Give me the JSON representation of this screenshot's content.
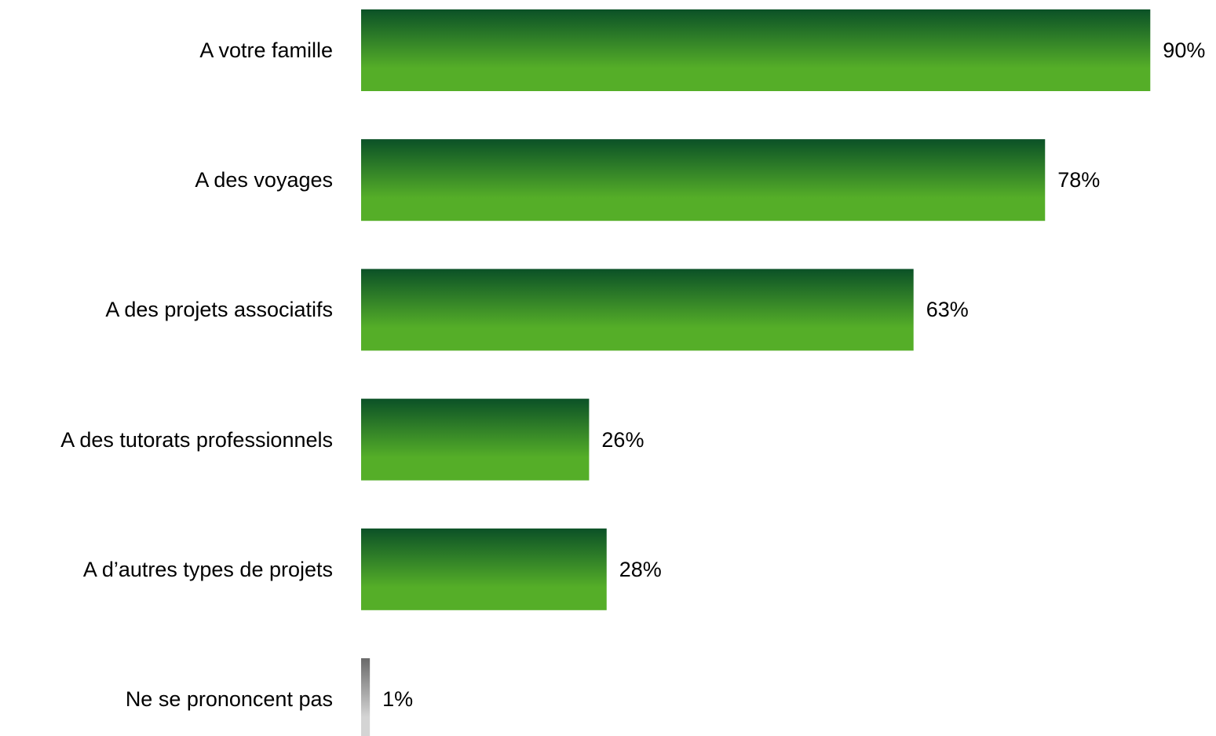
{
  "chart_data": {
    "type": "bar",
    "orientation": "horizontal",
    "categories": [
      "A votre famille",
      "A des voyages",
      "A des projets associatifs",
      "A des tutorats professionnels",
      "A d’autres types de projets",
      "Ne se prononcent pas"
    ],
    "values": [
      90,
      78,
      63,
      26,
      28,
      1
    ],
    "value_labels": [
      "90%",
      "78%",
      "63%",
      "26%",
      "28%",
      "1%"
    ],
    "unit": "%",
    "xlim": [
      0,
      100
    ],
    "title": "",
    "xlabel": "",
    "ylabel": "",
    "grid": false,
    "legend": "none",
    "colors": {
      "bar_top": "#0b5127",
      "bar_bottom": "#55ae28",
      "neutral_top": "#6a6a6a",
      "neutral_bottom": "#d4d4d4"
    },
    "neutral_category_index": 5
  }
}
